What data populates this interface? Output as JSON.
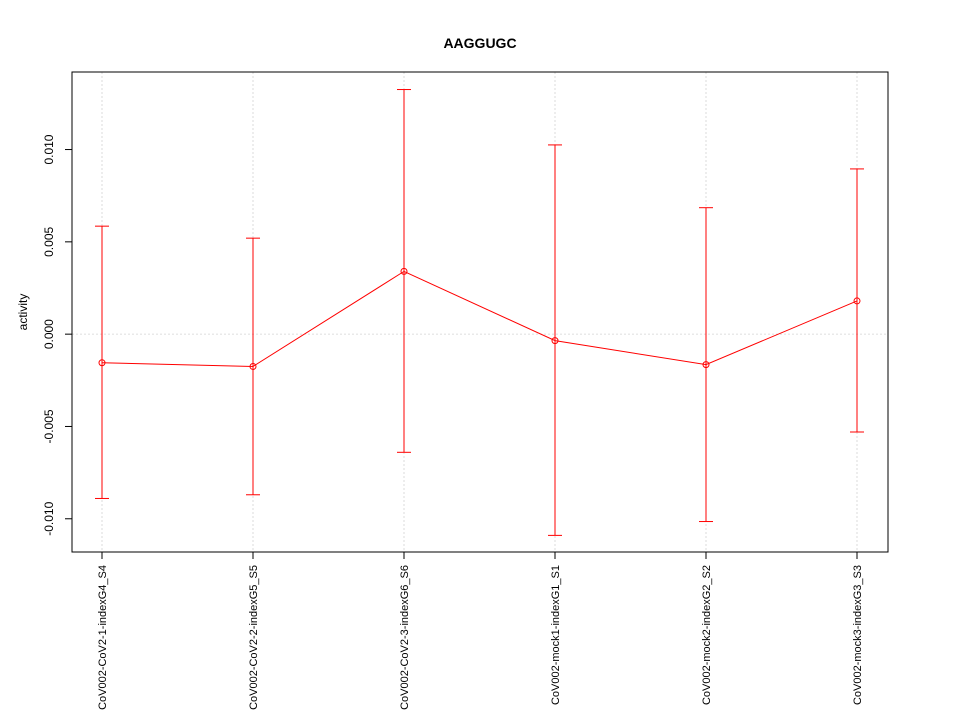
{
  "chart_data": {
    "type": "line",
    "title": "AAGGUGC",
    "xlabel": "",
    "ylabel": "activity",
    "categories": [
      "CoV002-CoV2-1-indexG4_S4",
      "CoV002-CoV2-2-indexG5_S5",
      "CoV002-CoV2-3-indexG6_S6",
      "CoV002-mock1-indexG1_S1",
      "CoV002-mock2-indexG2_S2",
      "CoV002-mock3-indexG3_S3"
    ],
    "series": [
      {
        "values": [
          -0.00155,
          -0.00175,
          0.0034,
          -0.00035,
          -0.00165,
          0.0018
        ],
        "upper": [
          0.00585,
          0.0052,
          0.01325,
          0.01025,
          0.00685,
          0.00895
        ],
        "lower": [
          -0.0089,
          -0.0087,
          -0.0064,
          -0.0109,
          -0.01015,
          -0.0053
        ]
      }
    ],
    "ylim": [
      -0.0118,
      0.0142
    ],
    "yticks": [
      -0.01,
      -0.005,
      0.0,
      0.005,
      0.01
    ],
    "ytick_labels": [
      "-0.010",
      "-0.005",
      "0.000",
      "0.005",
      "0.010"
    ],
    "grid": true,
    "colors": {
      "series": "#ff0000",
      "grid": "#d3d3d3",
      "axis": "#000000"
    }
  }
}
